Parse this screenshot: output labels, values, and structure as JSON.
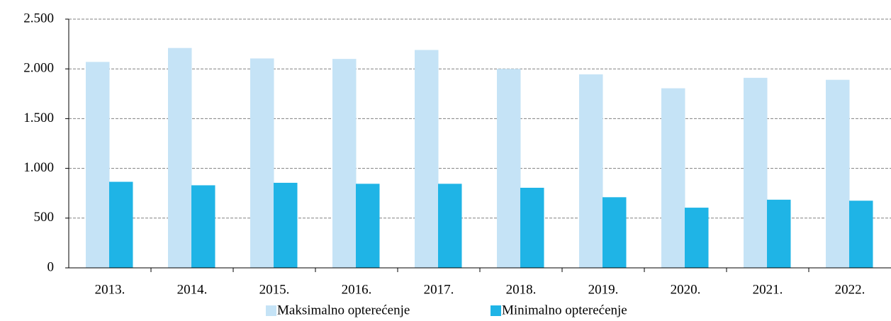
{
  "chart_data": {
    "type": "bar",
    "categories": [
      "2013.",
      "2014.",
      "2015.",
      "2016.",
      "2017.",
      "2018.",
      "2019.",
      "2020.",
      "2021.",
      "2022."
    ],
    "series": [
      {
        "name": "Maksimalno opterećenje",
        "color": "#c5e3f6",
        "values": [
          2070,
          2210,
          2105,
          2100,
          2190,
          2000,
          1945,
          1805,
          1910,
          1890
        ]
      },
      {
        "name": "Minimalno opterećenje",
        "color": "#1fb4e6",
        "values": [
          865,
          830,
          855,
          845,
          845,
          805,
          710,
          605,
          685,
          675
        ]
      }
    ],
    "ylim": [
      0,
      2500
    ],
    "yticks": [
      0,
      500,
      {
        "value": 1000,
        "label": "1.000"
      },
      {
        "value": 1500,
        "label": "1.500"
      },
      {
        "value": 2000,
        "label": "2.000"
      },
      {
        "value": 2500,
        "label": "2.500"
      }
    ],
    "grid": true,
    "legend": "bottom"
  }
}
